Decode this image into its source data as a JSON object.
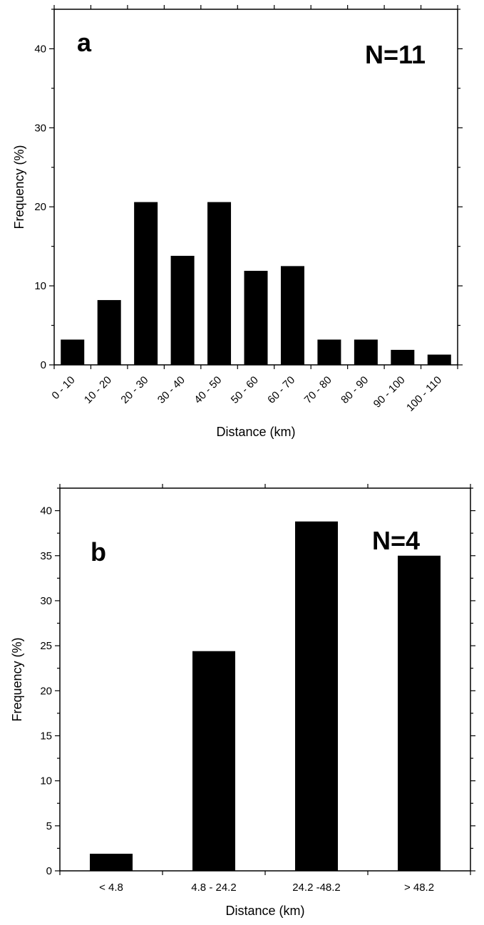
{
  "chart_data": [
    {
      "type": "bar",
      "panel_label": "a",
      "annotation": "N=11",
      "xlabel": "Distance (km)",
      "ylabel": "Frequency (%)",
      "ylim": [
        0,
        45
      ],
      "yticks": [
        0,
        10,
        20,
        30,
        40
      ],
      "categories": [
        "0 - 10",
        "10 - 20",
        "20 - 30",
        "30 - 40",
        "40 - 50",
        "50 - 60",
        "60 - 70",
        "70 - 80",
        "80 - 90",
        "90 - 100",
        "100 - 110"
      ],
      "values": [
        3.2,
        8.2,
        20.6,
        13.8,
        20.6,
        11.9,
        12.5,
        3.2,
        3.2,
        1.9,
        1.3
      ],
      "x_tick_rotation": "diagonal",
      "grid": false,
      "bar_color": "#000000"
    },
    {
      "type": "bar",
      "panel_label": "b",
      "annotation": "N=4",
      "xlabel": "Distance (km)",
      "ylabel": "Frequency (%)",
      "ylim": [
        0,
        42.5
      ],
      "yticks": [
        0,
        5,
        10,
        15,
        20,
        25,
        30,
        35,
        40
      ],
      "categories": [
        "< 4.8",
        "4.8 - 24.2",
        "24.2 -48.2",
        "> 48.2"
      ],
      "values": [
        1.9,
        24.4,
        38.8,
        35.0
      ],
      "x_tick_rotation": "horizontal",
      "grid": false,
      "bar_color": "#000000"
    }
  ]
}
